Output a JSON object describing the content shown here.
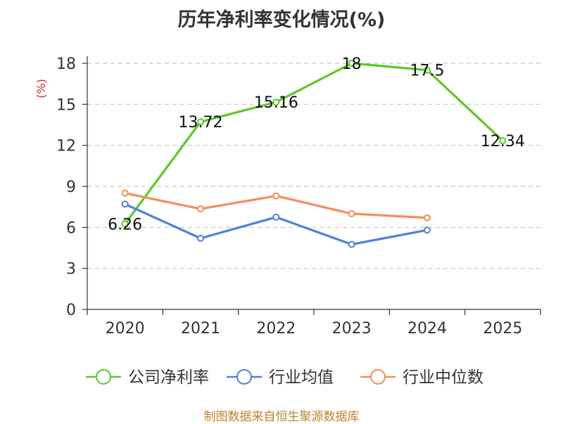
{
  "chart_data": {
    "type": "line",
    "title": "历年净利率变化情况(%)",
    "ylabel": "(%)",
    "xlabel": "",
    "categories": [
      "2020",
      "2021",
      "2022",
      "2023",
      "2024",
      "2025"
    ],
    "ylim": [
      0,
      18
    ],
    "yticks": [
      0,
      3,
      6,
      9,
      12,
      15,
      18
    ],
    "grid": true,
    "legend_position": "bottom",
    "series": [
      {
        "name": "公司净利率",
        "color": "#5cc72b",
        "labels": true,
        "values": [
          6.26,
          13.72,
          15.16,
          18,
          17.5,
          12.34
        ]
      },
      {
        "name": "行业均值",
        "color": "#4f7fdc",
        "labels": false,
        "values": [
          7.7,
          5.2,
          6.75,
          4.75,
          5.8,
          null
        ]
      },
      {
        "name": "行业中位数",
        "color": "#f58d58",
        "labels": false,
        "values": [
          8.5,
          7.35,
          8.3,
          7.0,
          6.7,
          null
        ]
      }
    ]
  },
  "source": "制图数据来自恒生聚源数据库"
}
